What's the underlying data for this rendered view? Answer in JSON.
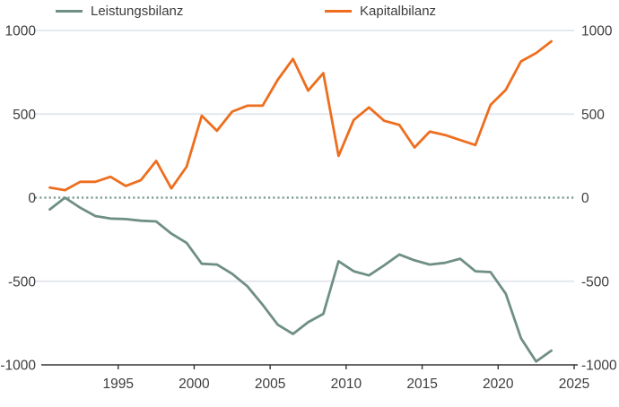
{
  "chart_data": {
    "type": "line",
    "title": "",
    "xlabel": "",
    "ylabel": "",
    "x": [
      1990,
      1991,
      1992,
      1993,
      1994,
      1995,
      1996,
      1997,
      1998,
      1999,
      2000,
      2001,
      2002,
      2003,
      2004,
      2005,
      2006,
      2007,
      2008,
      2009,
      2010,
      2011,
      2012,
      2013,
      2014,
      2015,
      2016,
      2017,
      2018,
      2019,
      2020,
      2021,
      2022,
      2023
    ],
    "series": [
      {
        "name": "Leistungsbilanz",
        "color": "#6F8F86",
        "values": [
          -70,
          0,
          -60,
          -110,
          -125,
          -128,
          -138,
          -142,
          -215,
          -270,
          -395,
          -400,
          -455,
          -530,
          -640,
          -760,
          -815,
          -745,
          -695,
          -380,
          -440,
          -465,
          -405,
          -340,
          -375,
          -400,
          -390,
          -365,
          -440,
          -445,
          -575,
          -840,
          -980,
          -915
        ]
      },
      {
        "name": "Kapitalbilanz",
        "color": "#ED6E1E",
        "values": [
          60,
          45,
          95,
          95,
          125,
          70,
          105,
          220,
          55,
          185,
          490,
          400,
          515,
          550,
          550,
          705,
          830,
          640,
          745,
          250,
          465,
          540,
          460,
          435,
          300,
          395,
          375,
          345,
          315,
          555,
          645,
          815,
          865,
          935
        ]
      }
    ],
    "xlim": [
      1990,
      2025
    ],
    "ylim": [
      -1000,
      1000
    ],
    "x_ticks": [
      1995,
      2000,
      2005,
      2010,
      2015,
      2020,
      2025
    ],
    "y_ticks": [
      1000,
      500,
      0,
      -500,
      -1000
    ],
    "grid": "horizontal gridlines at 500 steps",
    "zero_line_style": "dotted",
    "legend_position": "top",
    "y_axis_labels_sides": "left and right",
    "colors": {
      "grid": "#E4E8EF",
      "zero_line": "#84A098",
      "axis": "#333333",
      "tick_text": "#3D3D3D"
    }
  }
}
